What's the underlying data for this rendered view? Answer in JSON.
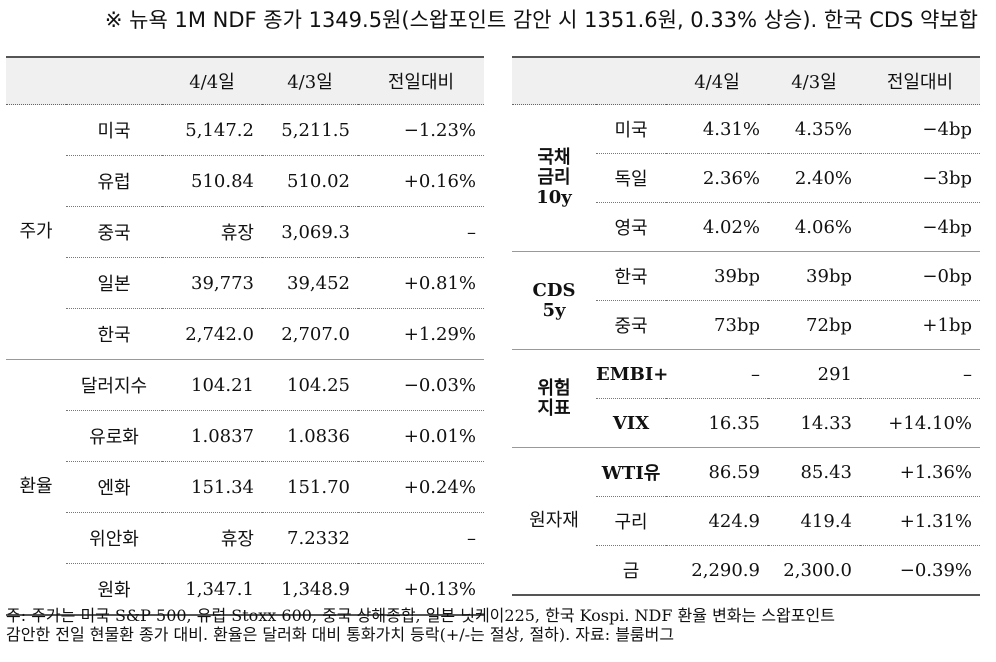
{
  "headline": "※ 뉴욕 1M NDF 종가 1349.5원(스왑포인트 감안 시 1351.6원, 0.33% 상승). 한국 CDS 약보합",
  "left": {
    "headers": [
      "",
      "",
      "4/4일",
      "4/3일",
      "전일대비"
    ],
    "groups": [
      {
        "name": "주가",
        "rows": [
          {
            "label": "미국",
            "d1": "5,147.2",
            "d2": "5,211.5",
            "chg": "−1.23%"
          },
          {
            "label": "유럽",
            "d1": "510.84",
            "d2": "510.02",
            "chg": "+0.16%"
          },
          {
            "label": "중국",
            "d1": "휴장",
            "d2": "3,069.3",
            "chg": "–"
          },
          {
            "label": "일본",
            "d1": "39,773",
            "d2": "39,452",
            "chg": "+0.81%"
          },
          {
            "label": "한국",
            "d1": "2,742.0",
            "d2": "2,707.0",
            "chg": "+1.29%"
          }
        ]
      },
      {
        "name": "환율",
        "rows": [
          {
            "label": "달러지수",
            "d1": "104.21",
            "d2": "104.25",
            "chg": "−0.03%"
          },
          {
            "label": "유로화",
            "d1": "1.0837",
            "d2": "1.0836",
            "chg": "+0.01%"
          },
          {
            "label": "엔화",
            "d1": "151.34",
            "d2": "151.70",
            "chg": "+0.24%"
          },
          {
            "label": "위안화",
            "d1": "휴장",
            "d2": "7.2332",
            "chg": "–"
          },
          {
            "label": "원화",
            "d1": "1,347.1",
            "d2": "1,348.9",
            "chg": "+0.13%"
          }
        ]
      }
    ]
  },
  "right": {
    "headers": [
      "",
      "",
      "4/4일",
      "4/3일",
      "전일대비"
    ],
    "groups": [
      {
        "name": "국채\n금리\n10y",
        "rows": [
          {
            "label": "미국",
            "d1": "4.31%",
            "d2": "4.35%",
            "chg": "−4bp"
          },
          {
            "label": "독일",
            "d1": "2.36%",
            "d2": "2.40%",
            "chg": "−3bp"
          },
          {
            "label": "영국",
            "d1": "4.02%",
            "d2": "4.06%",
            "chg": "−4bp"
          }
        ]
      },
      {
        "name": "CDS\n5y",
        "rows": [
          {
            "label": "한국",
            "d1": "39bp",
            "d2": "39bp",
            "chg": "−0bp"
          },
          {
            "label": "중국",
            "d1": "73bp",
            "d2": "72bp",
            "chg": "+1bp"
          }
        ]
      },
      {
        "name": "위험\n지표",
        "rows": [
          {
            "label": "EMBI+",
            "d1": "–",
            "d2": "291",
            "chg": "–"
          },
          {
            "label": "VIX",
            "d1": "16.35",
            "d2": "14.33",
            "chg": "+14.10%"
          }
        ]
      },
      {
        "name": "원자재",
        "rows": [
          {
            "label": "WTI유",
            "d1": "86.59",
            "d2": "85.43",
            "chg": "+1.36%"
          },
          {
            "label": "구리",
            "d1": "424.9",
            "d2": "419.4",
            "chg": "+1.31%"
          },
          {
            "label": "금",
            "d1": "2,290.9",
            "d2": "2,300.0",
            "chg": "−0.39%"
          }
        ]
      }
    ]
  },
  "note": {
    "line1": "주: 주가는 미국 S&P 500, 유럽 Stoxx 600, 중국 상해종합, 일본 닛케이225, 한국 Kospi. NDF 환율 변화는 스왑포인트",
    "line2": "감안한 전일 현물환 종가 대비. 환율은 달러화 대비 통화가치 등락(+/-는 절상, 절하). 자료: 블룸버그"
  }
}
